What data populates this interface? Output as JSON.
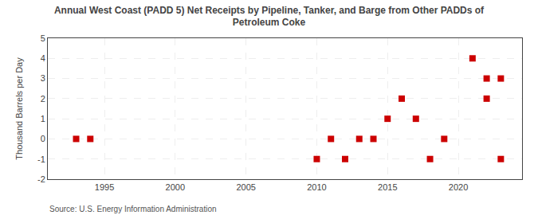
{
  "chart_data": {
    "type": "scatter",
    "title": "Annual West Coast (PADD 5) Net Receipts by Pipeline, Tanker, and Barge from Other PADDs of\nPetroleum Coke",
    "ylabel": "Thousand Barrels per Day",
    "annotations": [
      "Source: U.S. Energy Information Administration"
    ],
    "x": [
      1993,
      1994,
      2010,
      2011,
      2012,
      2013,
      2014,
      2015,
      2016,
      2017,
      2018,
      2019,
      2021,
      2022,
      2022,
      2023,
      2023
    ],
    "values": [
      0,
      0,
      -1,
      0,
      -1,
      0,
      0,
      1,
      2,
      1,
      -1,
      0,
      4,
      3,
      2,
      -1,
      3
    ],
    "color": "#cc0000",
    "marker": "square",
    "xlim": [
      1991.0,
      2024.5
    ],
    "xticks": [
      1995,
      2000,
      2005,
      2010,
      2015,
      2020
    ],
    "ylim": [
      -2,
      5
    ],
    "yticks": [
      -2,
      -1,
      0,
      1,
      2,
      3,
      4,
      5
    ],
    "grid": true
  }
}
